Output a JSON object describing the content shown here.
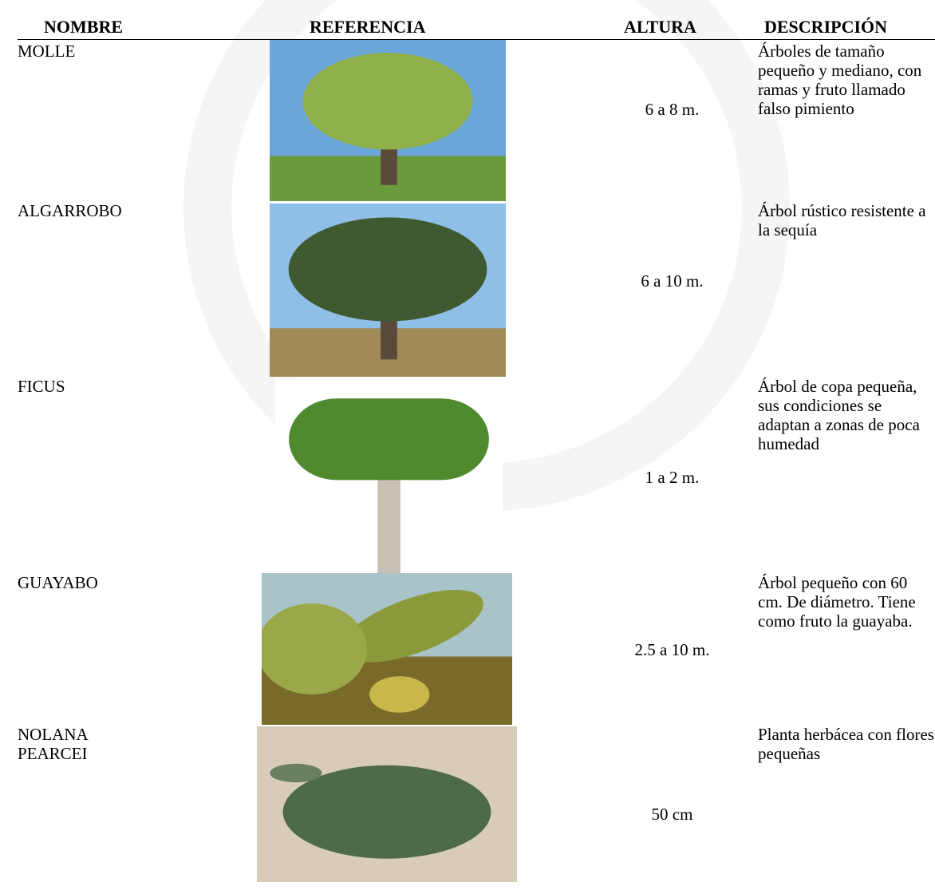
{
  "table": {
    "headers": [
      "NOMBRE",
      "REFERENCIA",
      "ALTURA",
      "DESCRIPCIÓN"
    ],
    "rows": [
      {
        "nombre": "MOLLE",
        "altura": "6 a 8 m.",
        "descripcion": "Árboles de tamaño pequeño y mediano, con ramas y fruto llamado falso pimiento"
      },
      {
        "nombre": "ALGARROBO",
        "altura": "6 a 10 m.",
        "descripcion": "Árbol rústico resistente a la sequía"
      },
      {
        "nombre": "FICUS",
        "altura": "1 a 2 m.",
        "descripcion": "Árbol de copa pequeña, sus condiciones se adaptan a zonas de poca humedad"
      },
      {
        "nombre": "GUAYABO",
        "altura": "2.5 a 10 m.",
        "descripcion": "Árbol pequeño con 60 cm. De diámetro. Tiene como fruto la guayaba."
      },
      {
        "nombre": "NOLANA PEARCEI",
        "altura": "50 cm",
        "descripcion": "Planta herbácea con flores pequeñas"
      }
    ]
  }
}
